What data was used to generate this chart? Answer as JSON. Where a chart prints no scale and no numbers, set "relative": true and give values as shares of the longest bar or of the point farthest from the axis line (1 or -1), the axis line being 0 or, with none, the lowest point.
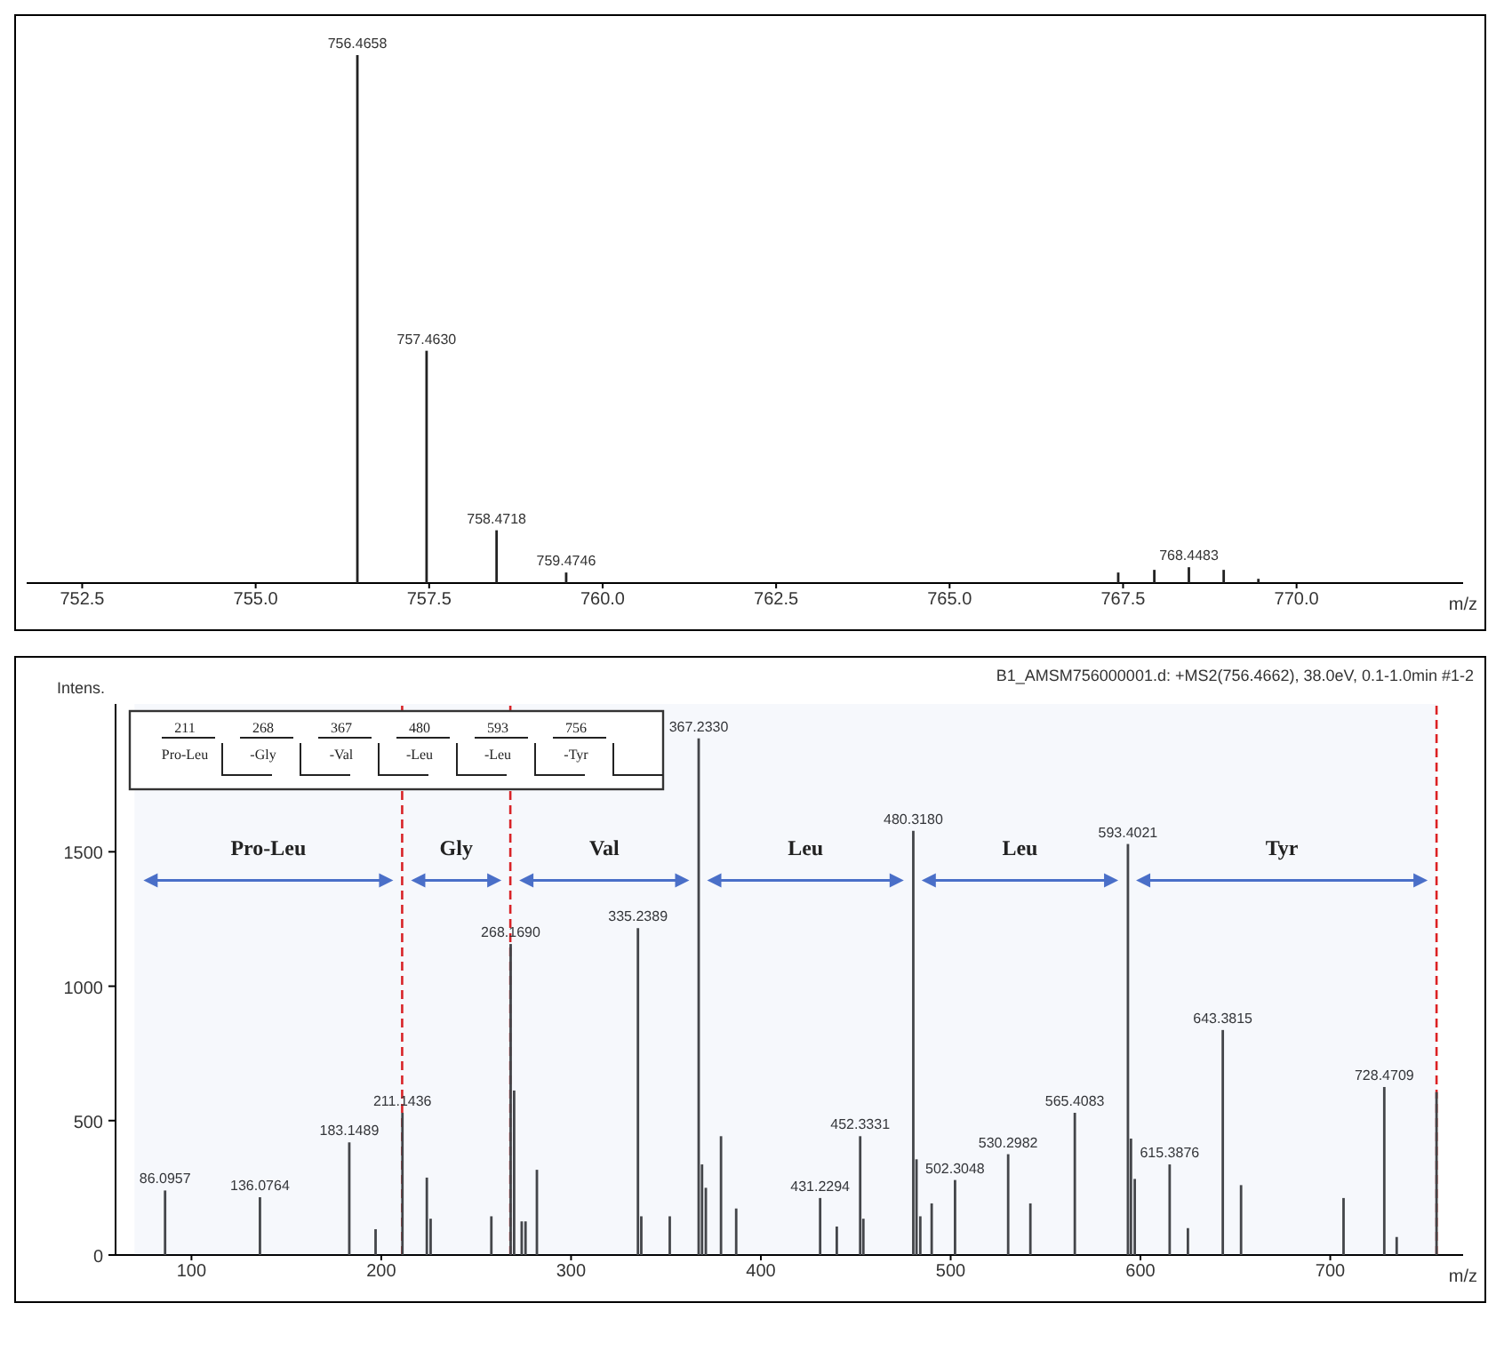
{
  "chart_data": [
    {
      "type": "bar",
      "relative": true,
      "xlabel": "m/z",
      "xlim": [
        751.7,
        772.4
      ],
      "xticks": [
        752.5,
        {
          "value": 755,
          "label": "755.0"
        },
        757.5,
        {
          "value": 760,
          "label": "760.0"
        },
        762.5,
        {
          "value": 765,
          "label": "765.0"
        },
        767.5,
        {
          "value": 770,
          "label": "770.0"
        }
      ],
      "series": [
        {
          "color": "#222222",
          "x": [
            756.4658,
            757.463,
            758.4718,
            759.4746,
            767.43,
            767.95,
            768.4483,
            768.95,
            769.45
          ],
          "values": [
            1,
            0.44,
            0.1,
            0.02,
            0.02,
            0.025,
            0.03,
            0.025,
            0.008
          ]
        }
      ],
      "annotations": [
        {
          "text": "756.4658",
          "x": 756.4658,
          "y": 1
        },
        {
          "text": "757.4630",
          "x": 757.463,
          "y": 0.44
        },
        {
          "text": "758.4718",
          "x": 758.4718,
          "y": 0.1
        },
        {
          "text": "759.4746",
          "x": 759.4746,
          "y": 0.02
        },
        {
          "text": "768.4483",
          "x": 768.4483,
          "y": 0.03
        }
      ],
      "grid": false,
      "legend": false
    },
    {
      "type": "bar",
      "title": "B1_AMSM756000001.d: +MS2(756.4662), 38.0eV, 0.1-1.0min #1-2",
      "xlabel": "m/z",
      "ylabel": "Intens.",
      "xlim": [
        60,
        770
      ],
      "xticks": [
        100,
        200,
        300,
        400,
        500,
        600,
        700
      ],
      "ylim": [
        0,
        2050
      ],
      "yticks": [
        0,
        500,
        1000,
        1500
      ],
      "series": [
        {
          "color": "#444444",
          "x": [
            86.0957,
            136.0764,
            183.1489,
            197,
            211.1436,
            224,
            226,
            258,
            268.169,
            270,
            274,
            276,
            282,
            335.2389,
            337,
            352,
            367.233,
            369,
            371,
            379,
            387,
            431.2294,
            440,
            452.3331,
            454,
            480.318,
            482,
            484,
            490,
            502.3048,
            530.2982,
            542,
            565.4083,
            593.4021,
            595,
            597,
            615.3876,
            625,
            643.3815,
            653,
            707,
            728.4709,
            735,
            756
          ],
          "values": [
            240,
            215,
            419,
            96,
            529,
            288,
            135,
            144,
            1157,
            612,
            125,
            125,
            317,
            1216,
            144,
            144,
            1922,
            337,
            250,
            442,
            173,
            212,
            106,
            442,
            135,
            1578,
            356,
            144,
            192,
            279,
            375,
            192,
            529,
            1529,
            433,
            283,
            337,
            100,
            837,
            260,
            212,
            625,
            67,
            606
          ]
        }
      ],
      "annotations": [
        "211",
        "268",
        "367",
        "480",
        "593",
        "756",
        "Pro-Leu",
        "-Gly",
        "-Val",
        "-Leu",
        "-Leu",
        "-Tyr",
        {
          "text": "86.0957",
          "x": 86.0957,
          "y": 240
        },
        {
          "text": "136.0764",
          "x": 136.0764,
          "y": 215
        },
        {
          "text": "183.1489",
          "x": 183.1489,
          "y": 419
        },
        {
          "text": "211.1436",
          "x": 211.1436,
          "y": 529
        },
        {
          "text": "268.1690",
          "x": 268.169,
          "y": 1157
        },
        {
          "text": "335.2389",
          "x": 335.2389,
          "y": 1216
        },
        {
          "text": "367.2330",
          "x": 367.233,
          "y": 1922
        },
        {
          "text": "431.2294",
          "x": 431.2294,
          "y": 212
        },
        {
          "text": "452.3331",
          "x": 452.3331,
          "y": 442
        },
        {
          "text": "480.3180",
          "x": 480.318,
          "y": 1578
        },
        {
          "text": "502.3048",
          "x": 502.3048,
          "y": 279
        },
        {
          "text": "530.2982",
          "x": 530.2982,
          "y": 375
        },
        {
          "text": "565.4083",
          "x": 565.4083,
          "y": 529
        },
        {
          "text": "593.4021",
          "x": 593.4021,
          "y": 1529
        },
        {
          "text": "615.3876",
          "x": 615.3876,
          "y": 337
        },
        {
          "text": "643.3815",
          "x": 643.3815,
          "y": 837
        },
        {
          "text": "728.4709",
          "x": 728.4709,
          "y": 625
        }
      ],
      "ref_lines": [
        {
          "axis": "x",
          "value": 211,
          "color": "#e02020",
          "line_style": "dashed"
        },
        {
          "axis": "x",
          "value": 268,
          "color": "#e02020",
          "line_style": "dashed"
        },
        {
          "axis": "x",
          "value": 756,
          "color": "#e02020",
          "line_style": "dashed"
        }
      ],
      "bands": [
        {
          "axis": "x",
          "from": 70,
          "to": 211,
          "label": "Pro-Leu",
          "color": "#4a6fc8"
        },
        {
          "axis": "x",
          "from": 211,
          "to": 268,
          "label": "Gly",
          "color": "#4a6fc8"
        },
        {
          "axis": "x",
          "from": 268,
          "to": 367,
          "label": "Val",
          "color": "#4a6fc8"
        },
        {
          "axis": "x",
          "from": 367,
          "to": 480,
          "label": "Leu",
          "color": "#4a6fc8"
        },
        {
          "axis": "x",
          "from": 480,
          "to": 593,
          "label": "Leu",
          "color": "#4a6fc8"
        },
        {
          "axis": "x",
          "from": 593,
          "to": 756,
          "label": "Tyr",
          "color": "#4a6fc8"
        }
      ],
      "grid": false,
      "legend": false
    }
  ]
}
